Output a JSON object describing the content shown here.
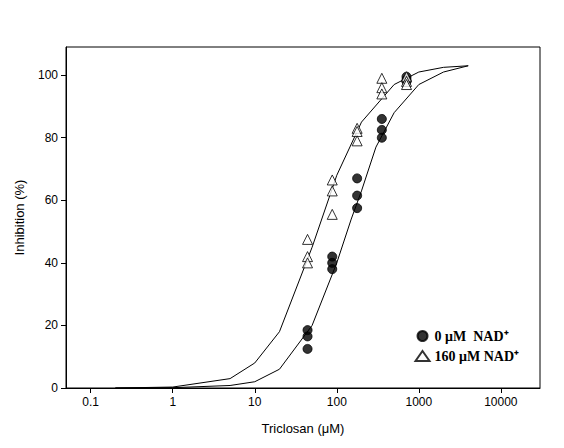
{
  "chart_data": {
    "type": "scatter",
    "x_label": "Triclosan (μM)",
    "y_label": "Inhibition (%)",
    "log": "x",
    "grid": false,
    "legend": "lower right",
    "xlim": [
      0.05,
      30000
    ],
    "xticks": [
      0.1,
      1,
      10,
      100,
      1000,
      10000
    ],
    "ylim": [
      0,
      109
    ],
    "yticks": [
      0,
      20,
      40,
      60,
      80,
      100
    ],
    "series": [
      {
        "name": "0 μM  NAD⁺",
        "color": "#000000",
        "marker": "circle",
        "x": [
          44,
          44,
          44,
          88,
          88,
          88,
          177,
          177,
          177,
          354,
          354,
          354,
          708,
          708,
          708
        ],
        "values": [
          18.5,
          16.5,
          12.5,
          42,
          40,
          38,
          67,
          61.5,
          57.5,
          86,
          82.5,
          80,
          99.5,
          98.5,
          98
        ],
        "fit": {
          "x": [
            0.2,
            1,
            5,
            10,
            20,
            50,
            100,
            150,
            200,
            300,
            500,
            1000,
            2000,
            4000
          ],
          "values": [
            0,
            0.1,
            0.8,
            2,
            6,
            20,
            40,
            54,
            63,
            77,
            88,
            97,
            101,
            103
          ]
        }
      },
      {
        "name": "160 μM NAD⁺",
        "color": "#000000",
        "marker": "triangle_open",
        "x": [
          44,
          44,
          44,
          88,
          88,
          88,
          177,
          177,
          177,
          354,
          354,
          354,
          708,
          708,
          708
        ],
        "values": [
          47.5,
          42,
          40,
          66.5,
          63,
          55.5,
          83,
          82,
          79,
          99,
          96,
          94,
          99.5,
          98,
          97
        ],
        "fit": {
          "x": [
            0.2,
            1,
            5,
            10,
            20,
            50,
            100,
            200,
            500,
            1000,
            2000,
            4000
          ],
          "values": [
            0,
            0.3,
            3,
            8,
            18,
            45,
            68,
            85,
            97,
            101,
            102.5,
            103
          ]
        }
      }
    ]
  }
}
